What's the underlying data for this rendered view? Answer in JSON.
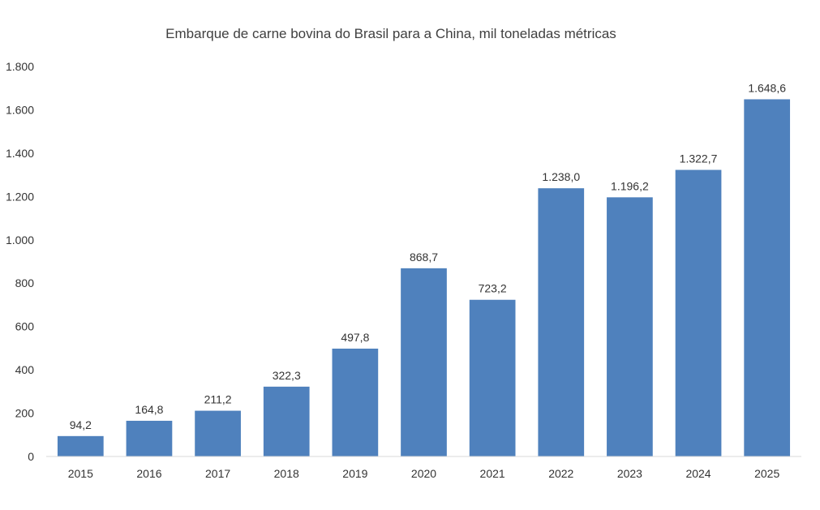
{
  "chart_data": {
    "type": "bar",
    "title": "Embarque de carne bovina do Brasil para a China, mil toneladas métricas",
    "xlabel": "",
    "ylabel": "",
    "categories": [
      "2015",
      "2016",
      "2017",
      "2018",
      "2019",
      "2020",
      "2021",
      "2022",
      "2023",
      "2024",
      "2025"
    ],
    "values": [
      94.2,
      164.8,
      211.2,
      322.3,
      497.8,
      868.7,
      723.2,
      1238.0,
      1196.2,
      1322.7,
      1648.6
    ],
    "value_labels": [
      "94,2",
      "164,8",
      "211,2",
      "322,3",
      "497,8",
      "868,7",
      "723,2",
      "1.238,0",
      "1.196,2",
      "1.322,7",
      "1.648,6"
    ],
    "ylim": [
      0,
      1800
    ],
    "yticks": [
      0,
      200,
      400,
      600,
      800,
      1000,
      1200,
      1400,
      1600,
      1800
    ],
    "ytick_labels": [
      "0",
      "200",
      "400",
      "600",
      "800",
      "1.000",
      "1.200",
      "1.400",
      "1.600",
      "1.800"
    ],
    "grid": false,
    "bar_color": "#4F81BD"
  }
}
